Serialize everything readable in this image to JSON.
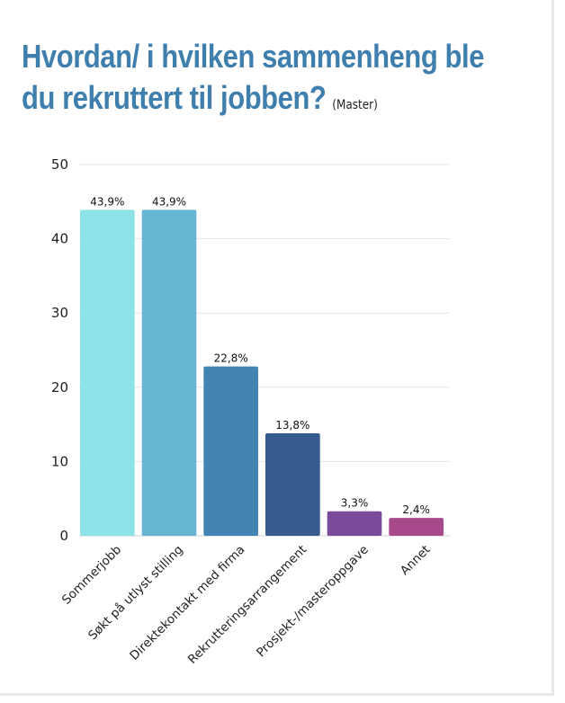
{
  "chart_data": {
    "type": "bar",
    "title": "Hvordan/ i hvilken sammenheng ble du rekruttert til jobben?",
    "title_line1": "Hvordan/ i hvilken sammenheng ble",
    "title_line2": "du rekruttert til jobben?",
    "subtitle": "(Master)",
    "categories": [
      "Sommerjobb",
      "Søkt på utlyst stilling",
      "Direktekontakt med firma",
      "Rekrutteringsarrangement",
      "Prosjekt-/masteroppgave",
      "Annet"
    ],
    "values": [
      43.9,
      43.9,
      22.8,
      13.8,
      3.3,
      2.4
    ],
    "data_labels": [
      "43,9%",
      "43,9%",
      "22,8%",
      "13,8%",
      "3,3%",
      "2,4%"
    ],
    "colors": [
      "#8ee3e8",
      "#66b6d3",
      "#4285b3",
      "#365b8e",
      "#7b4a9b",
      "#a8498c"
    ],
    "ylim": [
      0,
      50
    ],
    "yticks": [
      0,
      10,
      20,
      30,
      40,
      50
    ],
    "grid": true,
    "xlabel": "",
    "ylabel": ""
  }
}
